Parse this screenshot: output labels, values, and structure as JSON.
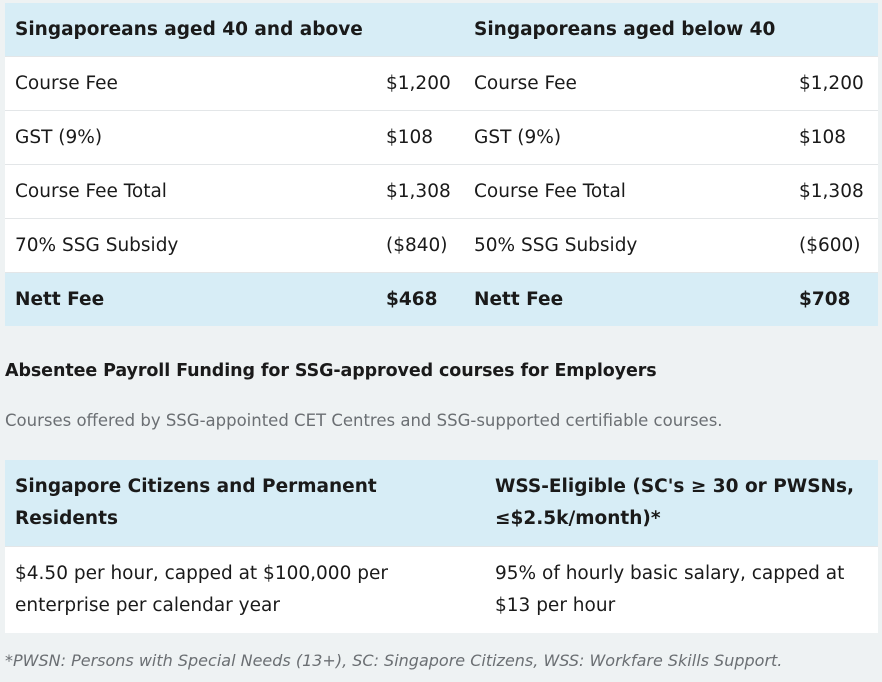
{
  "fee_table": {
    "headers": [
      "Singaporeans aged 40 and above",
      "Singaporeans aged below 40"
    ],
    "rows": [
      {
        "label_a": "Course Fee",
        "value_a": "$1,200",
        "label_b": "Course Fee",
        "value_b": "$1,200"
      },
      {
        "label_a": "GST (9%)",
        "value_a": "$108",
        "label_b": "GST (9%)",
        "value_b": "$108"
      },
      {
        "label_a": "Course Fee Total",
        "value_a": "$1,308",
        "label_b": "Course Fee Total",
        "value_b": "$1,308"
      },
      {
        "label_a": "70% SSG Subsidy",
        "value_a": "($840)",
        "label_b": "50% SSG Subsidy",
        "value_b": "($600)"
      }
    ],
    "nett": {
      "label_a": "Nett Fee",
      "value_a": "$468",
      "label_b": "Nett Fee",
      "value_b": "$708"
    }
  },
  "absentee": {
    "title": "Absentee Payroll Funding for SSG-approved courses for Employers",
    "subtitle": "Courses offered by SSG-appointed CET Centres and SSG-supported certifiable courses."
  },
  "payroll_table": {
    "headers": [
      "Singapore Citizens and Permanent Residents",
      "WSS-Eligible (SC's ≥ 30 or PWSNs, ≤$2.5k/month)*"
    ],
    "row": [
      "$4.50 per hour, capped at $100,000 per enterprise per calendar year",
      "95% of hourly basic salary, capped at $13 per hour"
    ]
  },
  "footnote": "*PWSN: Persons with Special Needs (13+), SC: Singapore Citizens, WSS: Workfare Skills Support."
}
